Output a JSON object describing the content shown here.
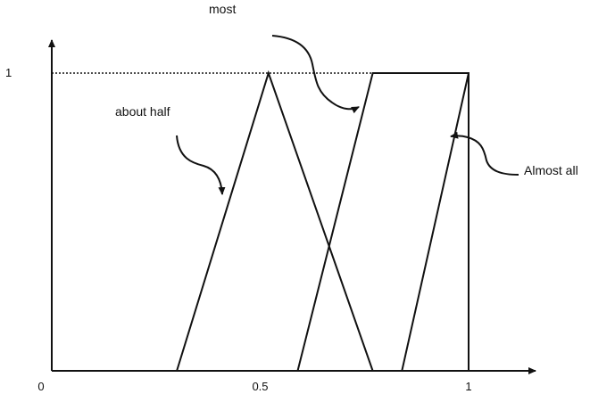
{
  "chart_data": {
    "type": "line",
    "title": "",
    "xlabel": "",
    "ylabel": "",
    "xlim": [
      0,
      1.2
    ],
    "ylim": [
      0,
      1.05
    ],
    "x_ticks": [
      {
        "value": 0,
        "label": "0"
      },
      {
        "value": 0.5,
        "label": "0.5"
      },
      {
        "value": 1,
        "label": "1"
      }
    ],
    "y_ticks": [
      {
        "value": 1,
        "label": "1"
      }
    ],
    "series": [
      {
        "name": "about half",
        "x": [
          0.3,
          0.52,
          0.77
        ],
        "y": [
          0,
          1,
          0
        ]
      },
      {
        "name": "most",
        "x": [
          0.59,
          0.77,
          1.0,
          1.0
        ],
        "y": [
          0,
          1,
          1,
          0
        ]
      },
      {
        "name": "Almost all",
        "x": [
          0.84,
          1.0,
          1.0
        ],
        "y": [
          0,
          1,
          0
        ]
      }
    ],
    "reference_lines": {
      "y_equals_one_dotted": true,
      "x_equals_one_dotted": true
    },
    "grid": false,
    "legend": "none"
  },
  "annotations": {
    "about_half": "about half",
    "most": "most",
    "almost_all": "Almost all"
  },
  "colors": {
    "line": "#111111",
    "background": "#ffffff"
  }
}
